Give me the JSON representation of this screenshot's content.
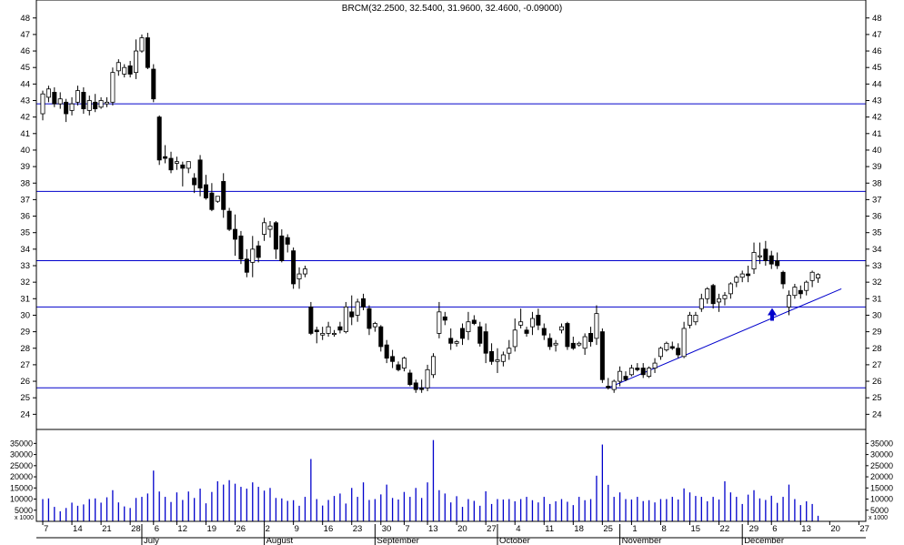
{
  "chart_data": {
    "type": "candlestick",
    "title": "BRCM(32.2500, 32.5400, 31.9600, 32.4600, -0.09000)",
    "price_axis": {
      "ylim": [
        23,
        48
      ],
      "ticks": [
        24,
        25,
        26,
        27,
        28,
        29,
        30,
        31,
        32,
        33,
        34,
        35,
        36,
        37,
        38,
        39,
        40,
        41,
        42,
        43,
        44,
        45,
        46,
        47,
        48
      ]
    },
    "volume_axis": {
      "ylim": [
        0,
        38000
      ],
      "ticks": [
        5000,
        10000,
        15000,
        20000,
        25000,
        30000,
        35000
      ],
      "tick_labels": [
        "5000",
        "10000",
        "15000",
        "20000",
        "25000",
        "30000",
        "35000"
      ],
      "unit_label": "x 1000"
    },
    "day_axis_labels": [
      {
        "label": "7",
        "index": 0
      },
      {
        "label": "14",
        "index": 5
      },
      {
        "label": "21",
        "index": 10
      },
      {
        "label": "28",
        "index": 15
      },
      {
        "label": "6",
        "index": 19
      },
      {
        "label": "12",
        "index": 23
      },
      {
        "label": "19",
        "index": 28
      },
      {
        "label": "26",
        "index": 33
      },
      {
        "label": "2",
        "index": 38
      },
      {
        "label": "9",
        "index": 43
      },
      {
        "label": "16",
        "index": 48
      },
      {
        "label": "23",
        "index": 53
      },
      {
        "label": "30",
        "index": 58
      },
      {
        "label": "7",
        "index": 62
      },
      {
        "label": "13",
        "index": 66
      },
      {
        "label": "20",
        "index": 71
      },
      {
        "label": "27",
        "index": 76
      },
      {
        "label": "4",
        "index": 81
      },
      {
        "label": "11",
        "index": 86
      },
      {
        "label": "18",
        "index": 91
      },
      {
        "label": "25",
        "index": 96
      },
      {
        "label": "1",
        "index": 101
      },
      {
        "label": "8",
        "index": 106
      },
      {
        "label": "15",
        "index": 111
      },
      {
        "label": "22",
        "index": 116
      },
      {
        "label": "29",
        "index": 121
      },
      {
        "label": "6",
        "index": 125
      },
      {
        "label": "13",
        "index": 130
      },
      {
        "label": "20",
        "index": 135
      },
      {
        "label": "27",
        "index": 140
      }
    ],
    "month_labels": [
      {
        "label": "July",
        "index": 17
      },
      {
        "label": "August",
        "index": 38
      },
      {
        "label": "September",
        "index": 57
      },
      {
        "label": "October",
        "index": 78
      },
      {
        "label": "November",
        "index": 99
      },
      {
        "label": "December",
        "index": 120
      }
    ],
    "horizontal_lines": [
      42.8,
      37.5,
      33.3,
      30.5,
      25.6
    ],
    "trendline": {
      "from": [
        97,
        25.6
      ],
      "to": [
        137,
        31.6
      ]
    },
    "candles": [
      {
        "o": 42.2,
        "h": 43.6,
        "l": 41.8,
        "c": 43.4,
        "v": 10000
      },
      {
        "o": 43.2,
        "h": 43.9,
        "l": 42.9,
        "c": 43.7,
        "v": 10300
      },
      {
        "o": 43.5,
        "h": 43.8,
        "l": 42.6,
        "c": 42.8,
        "v": 6500
      },
      {
        "o": 42.8,
        "h": 43.5,
        "l": 42.5,
        "c": 43.1,
        "v": 4500
      },
      {
        "o": 42.9,
        "h": 43.1,
        "l": 41.7,
        "c": 42.2,
        "v": 6000
      },
      {
        "o": 42.4,
        "h": 43.2,
        "l": 42.1,
        "c": 42.8,
        "v": 8400
      },
      {
        "o": 42.9,
        "h": 43.9,
        "l": 42.7,
        "c": 43.6,
        "v": 7000
      },
      {
        "o": 43.5,
        "h": 43.8,
        "l": 42.2,
        "c": 42.5,
        "v": 7600
      },
      {
        "o": 42.4,
        "h": 43.3,
        "l": 42.1,
        "c": 43.0,
        "v": 10000
      },
      {
        "o": 42.9,
        "h": 43.4,
        "l": 42.3,
        "c": 42.5,
        "v": 10300
      },
      {
        "o": 42.6,
        "h": 43.2,
        "l": 42.5,
        "c": 43.0,
        "v": 8400
      },
      {
        "o": 42.8,
        "h": 43.2,
        "l": 42.6,
        "c": 42.9,
        "v": 10800
      },
      {
        "o": 42.9,
        "h": 45.0,
        "l": 42.7,
        "c": 44.7,
        "v": 14000
      },
      {
        "o": 44.8,
        "h": 45.5,
        "l": 44.5,
        "c": 45.3,
        "v": 8500
      },
      {
        "o": 44.6,
        "h": 45.2,
        "l": 44.4,
        "c": 45.0,
        "v": 6700
      },
      {
        "o": 45.1,
        "h": 45.4,
        "l": 44.4,
        "c": 44.6,
        "v": 6000
      },
      {
        "o": 44.7,
        "h": 46.7,
        "l": 44.3,
        "c": 46.0,
        "v": 10500
      },
      {
        "o": 46.0,
        "h": 47.0,
        "l": 45.9,
        "c": 46.8,
        "v": 11000
      },
      {
        "o": 46.8,
        "h": 47.1,
        "l": 44.9,
        "c": 45.0,
        "v": 12500
      },
      {
        "o": 44.9,
        "h": 45.2,
        "l": 42.9,
        "c": 43.1,
        "v": 22800
      },
      {
        "o": 42.0,
        "h": 42.1,
        "l": 39.1,
        "c": 39.4,
        "v": 13400
      },
      {
        "o": 39.6,
        "h": 40.3,
        "l": 39.2,
        "c": 39.5,
        "v": 11000
      },
      {
        "o": 39.5,
        "h": 39.9,
        "l": 38.6,
        "c": 38.8,
        "v": 8700
      },
      {
        "o": 39.2,
        "h": 39.6,
        "l": 38.8,
        "c": 39.3,
        "v": 13000
      },
      {
        "o": 39.1,
        "h": 39.3,
        "l": 37.8,
        "c": 38.9,
        "v": 9600
      },
      {
        "o": 38.9,
        "h": 39.3,
        "l": 38.6,
        "c": 39.3,
        "v": 13400
      },
      {
        "o": 38.3,
        "h": 38.6,
        "l": 37.4,
        "c": 37.9,
        "v": 10500
      },
      {
        "o": 39.4,
        "h": 39.7,
        "l": 37.2,
        "c": 37.7,
        "v": 14700
      },
      {
        "o": 37.9,
        "h": 38.5,
        "l": 37.0,
        "c": 37.1,
        "v": 8100
      },
      {
        "o": 37.4,
        "h": 38.0,
        "l": 36.3,
        "c": 36.4,
        "v": 13200
      },
      {
        "o": 36.9,
        "h": 37.2,
        "l": 36.8,
        "c": 37.2,
        "v": 18000
      },
      {
        "o": 38.1,
        "h": 38.6,
        "l": 35.9,
        "c": 36.4,
        "v": 16500
      },
      {
        "o": 36.3,
        "h": 36.5,
        "l": 35.1,
        "c": 35.2,
        "v": 18500
      },
      {
        "o": 35.2,
        "h": 36.1,
        "l": 33.6,
        "c": 34.6,
        "v": 16900
      },
      {
        "o": 34.8,
        "h": 35.1,
        "l": 33.1,
        "c": 33.4,
        "v": 15500
      },
      {
        "o": 33.4,
        "h": 34.0,
        "l": 32.3,
        "c": 32.6,
        "v": 14700
      },
      {
        "o": 33.2,
        "h": 34.8,
        "l": 32.3,
        "c": 34.0,
        "v": 17500
      },
      {
        "o": 34.2,
        "h": 34.5,
        "l": 33.2,
        "c": 33.5,
        "v": 15500
      },
      {
        "o": 34.9,
        "h": 35.9,
        "l": 34.5,
        "c": 35.6,
        "v": 13800
      },
      {
        "o": 35.2,
        "h": 35.7,
        "l": 34.7,
        "c": 35.4,
        "v": 15000
      },
      {
        "o": 35.6,
        "h": 35.7,
        "l": 33.4,
        "c": 34.0,
        "v": 10500
      },
      {
        "o": 34.8,
        "h": 35.2,
        "l": 33.2,
        "c": 33.3,
        "v": 10300
      },
      {
        "o": 34.7,
        "h": 34.9,
        "l": 33.8,
        "c": 34.3,
        "v": 9200
      },
      {
        "o": 33.9,
        "h": 34.1,
        "l": 31.6,
        "c": 31.9,
        "v": 9500
      },
      {
        "o": 32.2,
        "h": 32.9,
        "l": 31.6,
        "c": 32.5,
        "v": 7000
      },
      {
        "o": 32.5,
        "h": 33.0,
        "l": 32.3,
        "c": 32.8,
        "v": 11000
      },
      {
        "o": 30.5,
        "h": 30.8,
        "l": 28.8,
        "c": 28.9,
        "v": 28000
      },
      {
        "o": 29.1,
        "h": 29.3,
        "l": 28.3,
        "c": 29.0,
        "v": 10000
      },
      {
        "o": 28.8,
        "h": 29.3,
        "l": 28.5,
        "c": 28.9,
        "v": 7100
      },
      {
        "o": 28.9,
        "h": 29.6,
        "l": 28.7,
        "c": 29.3,
        "v": 9600
      },
      {
        "o": 28.9,
        "h": 29.1,
        "l": 28.7,
        "c": 28.9,
        "v": 11400
      },
      {
        "o": 29.3,
        "h": 29.6,
        "l": 28.9,
        "c": 29.1,
        "v": 12500
      },
      {
        "o": 29.0,
        "h": 30.8,
        "l": 28.9,
        "c": 30.5,
        "v": 8000
      },
      {
        "o": 30.2,
        "h": 31.2,
        "l": 29.4,
        "c": 29.9,
        "v": 15000
      },
      {
        "o": 30.0,
        "h": 31.0,
        "l": 29.6,
        "c": 30.8,
        "v": 11000
      },
      {
        "o": 31.0,
        "h": 31.3,
        "l": 30.3,
        "c": 30.5,
        "v": 17500
      },
      {
        "o": 30.4,
        "h": 30.6,
        "l": 28.8,
        "c": 29.2,
        "v": 9600
      },
      {
        "o": 29.3,
        "h": 29.6,
        "l": 29.0,
        "c": 29.5,
        "v": 10000
      },
      {
        "o": 29.3,
        "h": 29.4,
        "l": 27.8,
        "c": 28.1,
        "v": 12100
      },
      {
        "o": 28.2,
        "h": 28.5,
        "l": 27.1,
        "c": 27.4,
        "v": 16500
      },
      {
        "o": 27.5,
        "h": 27.9,
        "l": 26.8,
        "c": 27.2,
        "v": 10500
      },
      {
        "o": 27.0,
        "h": 27.2,
        "l": 26.6,
        "c": 26.7,
        "v": 9800
      },
      {
        "o": 26.8,
        "h": 27.5,
        "l": 26.6,
        "c": 27.4,
        "v": 13200
      },
      {
        "o": 26.5,
        "h": 26.7,
        "l": 25.7,
        "c": 25.8,
        "v": 11000
      },
      {
        "o": 25.9,
        "h": 26.1,
        "l": 25.3,
        "c": 25.5,
        "v": 15000
      },
      {
        "o": 25.6,
        "h": 26.1,
        "l": 25.3,
        "c": 25.5,
        "v": 10500
      },
      {
        "o": 25.6,
        "h": 27.0,
        "l": 25.4,
        "c": 26.7,
        "v": 17500
      },
      {
        "o": 26.4,
        "h": 27.7,
        "l": 26.2,
        "c": 27.5,
        "v": 36500
      },
      {
        "o": 28.9,
        "h": 30.8,
        "l": 28.6,
        "c": 30.2,
        "v": 14000
      },
      {
        "o": 29.9,
        "h": 30.2,
        "l": 29.4,
        "c": 29.7,
        "v": 12500
      },
      {
        "o": 28.6,
        "h": 29.2,
        "l": 27.9,
        "c": 28.3,
        "v": 8500
      },
      {
        "o": 28.3,
        "h": 28.5,
        "l": 28.1,
        "c": 28.4,
        "v": 11300
      },
      {
        "o": 29.2,
        "h": 29.5,
        "l": 28.2,
        "c": 28.6,
        "v": 6500
      },
      {
        "o": 29.0,
        "h": 30.2,
        "l": 28.5,
        "c": 29.6,
        "v": 10000
      },
      {
        "o": 29.7,
        "h": 30.0,
        "l": 29.4,
        "c": 29.5,
        "v": 9200
      },
      {
        "o": 29.3,
        "h": 29.6,
        "l": 28.1,
        "c": 28.3,
        "v": 7000
      },
      {
        "o": 29.0,
        "h": 29.5,
        "l": 27.1,
        "c": 27.7,
        "v": 13500
      },
      {
        "o": 27.8,
        "h": 28.3,
        "l": 27.0,
        "c": 27.2,
        "v": 7800
      },
      {
        "o": 27.2,
        "h": 28.0,
        "l": 26.5,
        "c": 27.3,
        "v": 10000
      },
      {
        "o": 27.2,
        "h": 27.8,
        "l": 26.9,
        "c": 27.6,
        "v": 9800
      },
      {
        "o": 27.7,
        "h": 28.5,
        "l": 27.3,
        "c": 28.0,
        "v": 10000
      },
      {
        "o": 28.1,
        "h": 29.8,
        "l": 27.8,
        "c": 29.1,
        "v": 9000
      },
      {
        "o": 29.4,
        "h": 30.4,
        "l": 29.2,
        "c": 29.6,
        "v": 10000
      },
      {
        "o": 29.1,
        "h": 29.3,
        "l": 28.7,
        "c": 28.9,
        "v": 11000
      },
      {
        "o": 29.3,
        "h": 30.2,
        "l": 28.8,
        "c": 29.8,
        "v": 9500
      },
      {
        "o": 30.0,
        "h": 30.4,
        "l": 29.1,
        "c": 29.4,
        "v": 8500
      },
      {
        "o": 29.2,
        "h": 29.5,
        "l": 28.5,
        "c": 28.8,
        "v": 11000
      },
      {
        "o": 28.6,
        "h": 28.9,
        "l": 27.9,
        "c": 28.1,
        "v": 7800
      },
      {
        "o": 28.2,
        "h": 28.5,
        "l": 27.8,
        "c": 28.3,
        "v": 9000
      },
      {
        "o": 29.1,
        "h": 29.5,
        "l": 28.9,
        "c": 29.3,
        "v": 10000
      },
      {
        "o": 29.5,
        "h": 29.6,
        "l": 27.9,
        "c": 28.1,
        "v": 8800
      },
      {
        "o": 28.3,
        "h": 28.7,
        "l": 27.9,
        "c": 28.0,
        "v": 7300
      },
      {
        "o": 28.2,
        "h": 28.4,
        "l": 28.1,
        "c": 28.3,
        "v": 11000
      },
      {
        "o": 28.0,
        "h": 28.9,
        "l": 27.6,
        "c": 28.7,
        "v": 9500
      },
      {
        "o": 28.9,
        "h": 29.3,
        "l": 28.1,
        "c": 28.4,
        "v": 10000
      },
      {
        "o": 28.6,
        "h": 30.6,
        "l": 28.2,
        "c": 30.1,
        "v": 20500
      },
      {
        "o": 29.0,
        "h": 29.2,
        "l": 25.9,
        "c": 26.1,
        "v": 34500
      },
      {
        "o": 25.7,
        "h": 26.2,
        "l": 25.5,
        "c": 25.6,
        "v": 16400
      },
      {
        "o": 25.5,
        "h": 26.1,
        "l": 25.3,
        "c": 26.0,
        "v": 11000
      },
      {
        "o": 26.0,
        "h": 26.9,
        "l": 25.7,
        "c": 26.6,
        "v": 13000
      },
      {
        "o": 26.3,
        "h": 26.6,
        "l": 26.0,
        "c": 26.1,
        "v": 10000
      },
      {
        "o": 26.4,
        "h": 27.0,
        "l": 26.3,
        "c": 26.8,
        "v": 9800
      },
      {
        "o": 26.8,
        "h": 27.1,
        "l": 26.6,
        "c": 26.7,
        "v": 11000
      },
      {
        "o": 26.8,
        "h": 27.1,
        "l": 26.2,
        "c": 26.4,
        "v": 9100
      },
      {
        "o": 26.3,
        "h": 26.9,
        "l": 26.2,
        "c": 26.8,
        "v": 9500
      },
      {
        "o": 26.8,
        "h": 27.4,
        "l": 26.5,
        "c": 27.1,
        "v": 8500
      },
      {
        "o": 27.5,
        "h": 28.1,
        "l": 27.3,
        "c": 28.0,
        "v": 10000
      },
      {
        "o": 27.9,
        "h": 28.4,
        "l": 27.8,
        "c": 28.3,
        "v": 10000
      },
      {
        "o": 28.1,
        "h": 28.4,
        "l": 27.9,
        "c": 28.0,
        "v": 11000
      },
      {
        "o": 28.0,
        "h": 28.3,
        "l": 27.4,
        "c": 27.6,
        "v": 9800
      },
      {
        "o": 27.5,
        "h": 29.6,
        "l": 27.4,
        "c": 29.2,
        "v": 14800
      },
      {
        "o": 29.4,
        "h": 30.2,
        "l": 29.2,
        "c": 30.0,
        "v": 13000
      },
      {
        "o": 29.6,
        "h": 30.2,
        "l": 29.4,
        "c": 30.0,
        "v": 11400
      },
      {
        "o": 30.4,
        "h": 31.3,
        "l": 30.2,
        "c": 31.0,
        "v": 11000
      },
      {
        "o": 31.0,
        "h": 31.7,
        "l": 30.7,
        "c": 31.6,
        "v": 9000
      },
      {
        "o": 31.8,
        "h": 31.9,
        "l": 30.4,
        "c": 30.7,
        "v": 11000
      },
      {
        "o": 30.8,
        "h": 31.3,
        "l": 30.2,
        "c": 31.0,
        "v": 9800
      },
      {
        "o": 31.0,
        "h": 31.4,
        "l": 30.6,
        "c": 31.2,
        "v": 18000
      },
      {
        "o": 31.3,
        "h": 32.0,
        "l": 31.0,
        "c": 31.9,
        "v": 13000
      },
      {
        "o": 32.0,
        "h": 32.4,
        "l": 31.7,
        "c": 32.3,
        "v": 11000
      },
      {
        "o": 32.3,
        "h": 32.7,
        "l": 32.0,
        "c": 32.5,
        "v": 7800
      },
      {
        "o": 32.5,
        "h": 33.0,
        "l": 32.0,
        "c": 32.4,
        "v": 12000
      },
      {
        "o": 32.8,
        "h": 34.4,
        "l": 32.5,
        "c": 33.8,
        "v": 14000
      },
      {
        "o": 33.6,
        "h": 34.4,
        "l": 33.1,
        "c": 33.6,
        "v": 10300
      },
      {
        "o": 34.0,
        "h": 34.5,
        "l": 33.0,
        "c": 33.3,
        "v": 9600
      },
      {
        "o": 33.6,
        "h": 33.9,
        "l": 32.8,
        "c": 33.1,
        "v": 11500
      },
      {
        "o": 33.3,
        "h": 33.8,
        "l": 32.8,
        "c": 33.0,
        "v": 8300
      },
      {
        "o": 32.6,
        "h": 32.7,
        "l": 31.6,
        "c": 31.9,
        "v": 11000
      },
      {
        "o": 30.5,
        "h": 31.5,
        "l": 30.0,
        "c": 31.2,
        "v": 16500
      },
      {
        "o": 31.2,
        "h": 31.9,
        "l": 31.0,
        "c": 31.7,
        "v": 10000
      },
      {
        "o": 31.5,
        "h": 31.8,
        "l": 31.0,
        "c": 31.3,
        "v": 7300
      },
      {
        "o": 31.5,
        "h": 32.1,
        "l": 31.2,
        "c": 32.0,
        "v": 9000
      },
      {
        "o": 32.1,
        "h": 32.7,
        "l": 31.7,
        "c": 32.6,
        "v": 7800
      },
      {
        "o": 32.25,
        "h": 32.54,
        "l": 31.96,
        "c": 32.46,
        "v": 2500
      }
    ]
  }
}
